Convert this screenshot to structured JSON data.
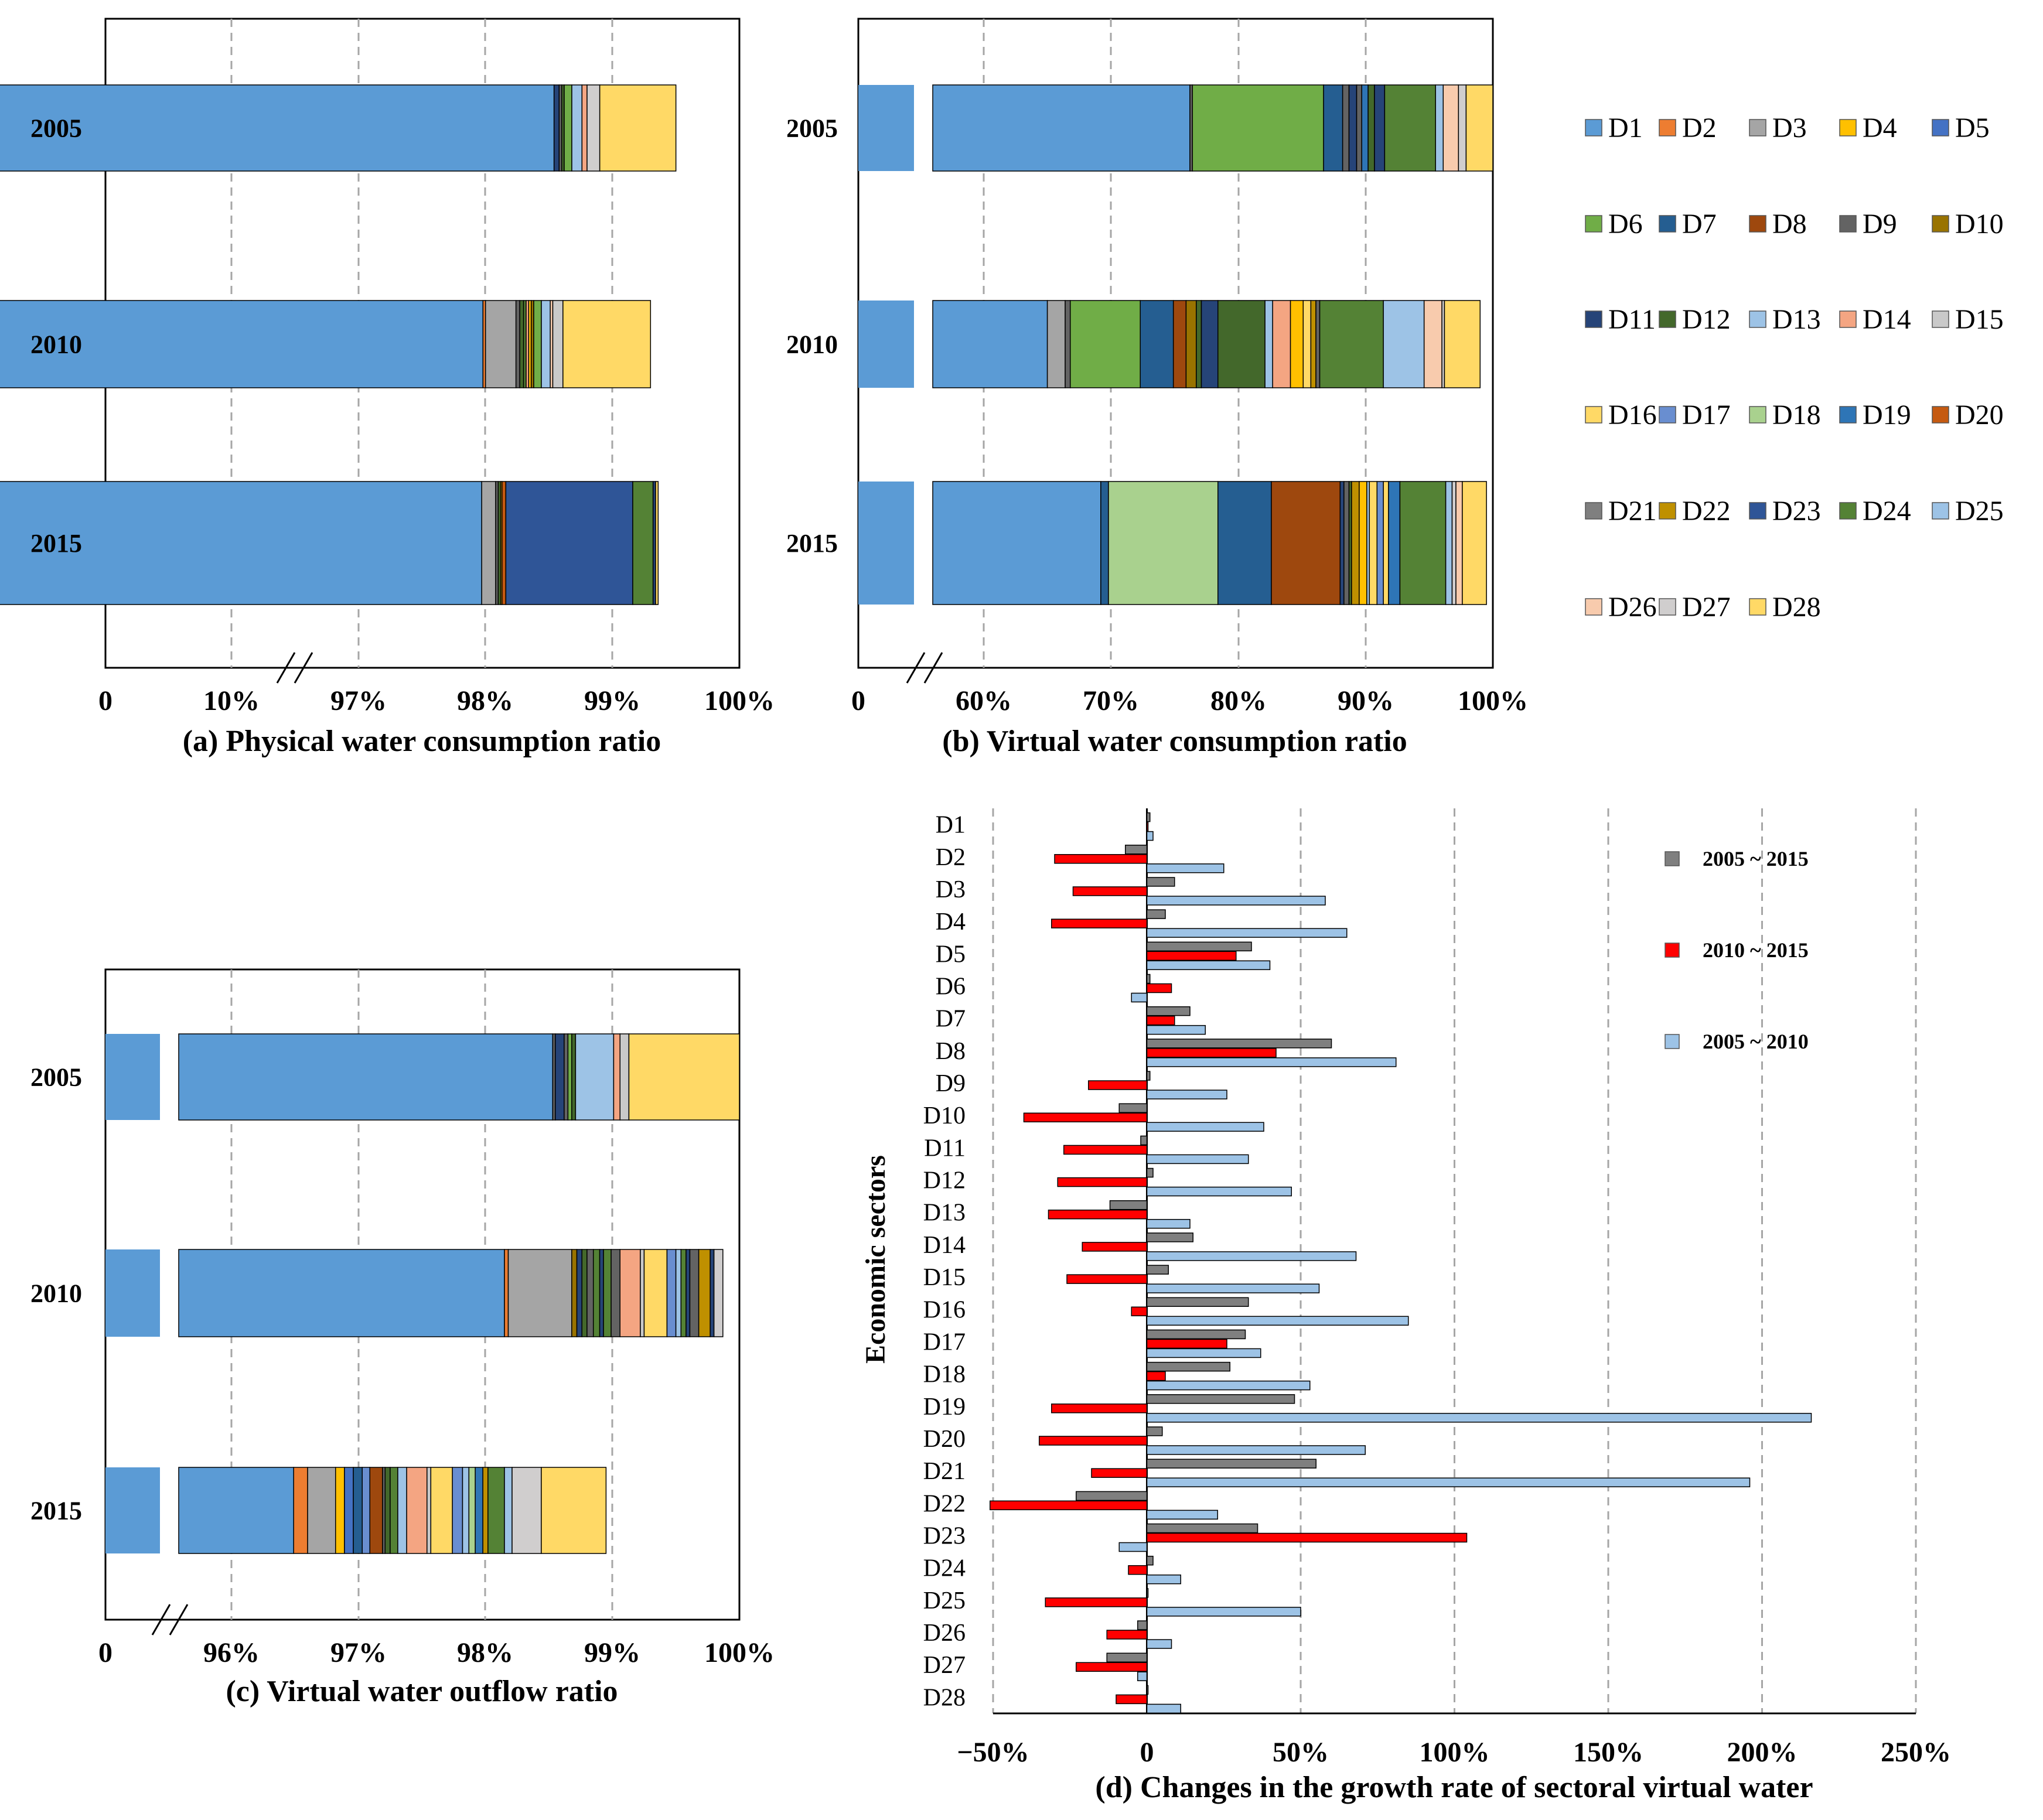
{
  "colors": {
    "D1": "#5B9BD5",
    "D2": "#ED7D31",
    "D3": "#A5A5A5",
    "D4": "#FFC000",
    "D5": "#4472C4",
    "D6": "#70AD47",
    "D7": "#255E91",
    "D8": "#9E480E",
    "D9": "#636363",
    "D10": "#997300",
    "D11": "#264478",
    "D12": "#43682B",
    "D13": "#9DC3E6",
    "D14": "#F4A582",
    "D15": "#C9C9C9",
    "D16": "#FFD966",
    "D17": "#698ED0",
    "D18": "#A9D18E",
    "D19": "#2E75B6",
    "D20": "#C55A11",
    "D21": "#7F7F7F",
    "D22": "#BF9000",
    "D23": "#2F5597",
    "D24": "#548235",
    "D25": "#9DC3E6",
    "D26": "#F8CBAD",
    "D27": "#D0CECE",
    "D28": "#FFD966",
    "black": "#000000",
    "gray": "#7f7f7f",
    "red": "#FF0000",
    "lightblue": "#9DC3E6"
  },
  "legend": {
    "items": [
      "D1",
      "D2",
      "D3",
      "D4",
      "D5",
      "D6",
      "D7",
      "D8",
      "D9",
      "D10",
      "D11",
      "D12",
      "D13",
      "D14",
      "D15",
      "D16",
      "D17",
      "D18",
      "D19",
      "D20",
      "D21",
      "D22",
      "D23",
      "D24",
      "D25",
      "D26",
      "D27",
      "D28"
    ]
  },
  "chart_data": [
    {
      "type": "bar",
      "orientation": "horizontal-stacked",
      "title": "(a) Physical water consumption ratio",
      "categories": [
        "2005",
        "2010",
        "2015"
      ],
      "axis_break": "between 10% and 97%",
      "x_ticks": [
        "0",
        "10%",
        "97%",
        "98%",
        "99%",
        "100%"
      ],
      "xlim_after_break": [
        96.5,
        100
      ],
      "segments": [
        [
          [
            "D1",
            98.54
          ],
          [
            "D11",
            0.04
          ],
          [
            "D9",
            0.02
          ],
          [
            "D12",
            0.02
          ],
          [
            "D6",
            0.06
          ],
          [
            "D13",
            0.08
          ],
          [
            "D14",
            0.04
          ],
          [
            "D27",
            0.1
          ],
          [
            "D28",
            0.6
          ]
        ],
        [
          [
            "D1",
            97.98
          ],
          [
            "D2",
            0.02
          ],
          [
            "D3",
            0.24
          ],
          [
            "D9",
            0.03
          ],
          [
            "D12",
            0.03
          ],
          [
            "D24",
            0.02
          ],
          [
            "D14",
            0.02
          ],
          [
            "D4",
            0.02
          ],
          [
            "D10",
            0.02
          ],
          [
            "D6",
            0.06
          ],
          [
            "D13",
            0.07
          ],
          [
            "D26",
            0.02
          ],
          [
            "D15",
            0.08
          ],
          [
            "D28",
            0.69
          ]
        ],
        [
          [
            "D1",
            97.97
          ],
          [
            "D3",
            0.11
          ],
          [
            "D9",
            0.02
          ],
          [
            "D12",
            0.02
          ],
          [
            "D4",
            0.01
          ],
          [
            "D20",
            0.03
          ],
          [
            "D23",
            1.0
          ],
          [
            "D24",
            0.16
          ],
          [
            "D11",
            0.02
          ],
          [
            "D28",
            0.02
          ]
        ]
      ]
    },
    {
      "type": "bar",
      "orientation": "horizontal-stacked",
      "title": "(b) Virtual water consumption ratio",
      "categories": [
        "2005",
        "2010",
        "2015"
      ],
      "axis_break": "between 0 and 60%",
      "x_ticks": [
        "0",
        "60%",
        "70%",
        "80%",
        "90%",
        "100%"
      ],
      "xlim_after_break": [
        54,
        100
      ],
      "segments": [
        [
          [
            "D1",
            76.2
          ],
          [
            "D9",
            0.2
          ],
          [
            "D6",
            10.3
          ],
          [
            "D7",
            1.5
          ],
          [
            "D9",
            0.5
          ],
          [
            "D11",
            0.6
          ],
          [
            "D9",
            0.4
          ],
          [
            "D19",
            0.5
          ],
          [
            "D12",
            0.5
          ],
          [
            "D11",
            0.8
          ],
          [
            "D24",
            4.0
          ],
          [
            "D13",
            0.6
          ],
          [
            "D26",
            1.2
          ],
          [
            "D27",
            0.6
          ],
          [
            "D28",
            2.1
          ]
        ],
        [
          [
            "D1",
            65.0
          ],
          [
            "D3",
            1.4
          ],
          [
            "D9",
            0.4
          ],
          [
            "D6",
            5.5
          ],
          [
            "D7",
            2.6
          ],
          [
            "D8",
            1.0
          ],
          [
            "D10",
            0.8
          ],
          [
            "D12",
            0.4
          ],
          [
            "D11",
            1.3
          ],
          [
            "D12",
            3.7
          ],
          [
            "D13",
            0.6
          ],
          [
            "D14",
            1.4
          ],
          [
            "D4",
            1.0
          ],
          [
            "D16",
            0.6
          ],
          [
            "D22",
            0.4
          ],
          [
            "D9",
            0.3
          ],
          [
            "D24",
            5.0
          ],
          [
            "D13",
            3.2
          ],
          [
            "D26",
            1.4
          ],
          [
            "D27",
            0.2
          ],
          [
            "D28",
            2.8
          ]
        ],
        [
          [
            "D1",
            69.2
          ],
          [
            "D7",
            0.6
          ],
          [
            "D18",
            8.6
          ],
          [
            "D7",
            4.2
          ],
          [
            "D8",
            5.4
          ],
          [
            "D11",
            0.3
          ],
          [
            "D9",
            0.4
          ],
          [
            "D12",
            0.2
          ],
          [
            "D22",
            0.6
          ],
          [
            "D4",
            0.6
          ],
          [
            "D13",
            0.2
          ],
          [
            "D28",
            0.6
          ],
          [
            "D17",
            0.5
          ],
          [
            "D16",
            0.4
          ],
          [
            "D19",
            0.9
          ],
          [
            "D24",
            3.6
          ],
          [
            "D13",
            0.5
          ],
          [
            "D27",
            0.3
          ],
          [
            "D26",
            0.5
          ],
          [
            "D28",
            1.9
          ]
        ]
      ]
    },
    {
      "type": "bar",
      "orientation": "horizontal-stacked",
      "title": "(c) Virtual water outflow ratio",
      "categories": [
        "2005",
        "2010",
        "2015"
      ],
      "axis_break": "between 0 and 96%",
      "x_ticks": [
        "0",
        "96%",
        "97%",
        "98%",
        "99%",
        "100%"
      ],
      "xlim_after_break": [
        95.6,
        100
      ],
      "segments": [
        [
          [
            "D1",
            98.53
          ],
          [
            "D9",
            0.02
          ],
          [
            "D11",
            0.07
          ],
          [
            "D9",
            0.03
          ],
          [
            "D6",
            0.03
          ],
          [
            "D12",
            0.03
          ],
          [
            "D13",
            0.3
          ],
          [
            "D14",
            0.05
          ],
          [
            "D15",
            0.07
          ],
          [
            "D28",
            0.87
          ]
        ],
        [
          [
            "D1",
            98.15
          ],
          [
            "D2",
            0.03
          ],
          [
            "D3",
            0.5
          ],
          [
            "D10",
            0.04
          ],
          [
            "D11",
            0.04
          ],
          [
            "D12",
            0.04
          ],
          [
            "D9",
            0.05
          ],
          [
            "D24",
            0.05
          ],
          [
            "D11",
            0.03
          ],
          [
            "D24",
            0.06
          ],
          [
            "D9",
            0.07
          ],
          [
            "D14",
            0.16
          ],
          [
            "D15",
            0.03
          ],
          [
            "D16",
            0.18
          ],
          [
            "D17",
            0.07
          ],
          [
            "D13",
            0.04
          ],
          [
            "D24",
            0.04
          ],
          [
            "D11",
            0.03
          ],
          [
            "D9",
            0.07
          ],
          [
            "D22",
            0.09
          ],
          [
            "D11",
            0.03
          ],
          [
            "D27",
            0.07
          ]
        ],
        [
          [
            "D1",
            96.49
          ],
          [
            "D2",
            0.11
          ],
          [
            "D3",
            0.22
          ],
          [
            "D4",
            0.07
          ],
          [
            "D5",
            0.07
          ],
          [
            "D7",
            0.07
          ],
          [
            "D17",
            0.06
          ],
          [
            "D8",
            0.1
          ],
          [
            "D9",
            0.02
          ],
          [
            "D12",
            0.04
          ],
          [
            "D24",
            0.06
          ],
          [
            "D13",
            0.07
          ],
          [
            "D14",
            0.16
          ],
          [
            "D15",
            0.03
          ],
          [
            "D16",
            0.17
          ],
          [
            "D17",
            0.08
          ],
          [
            "D13",
            0.05
          ],
          [
            "D18",
            0.05
          ],
          [
            "D19",
            0.06
          ],
          [
            "D22",
            0.04
          ],
          [
            "D24",
            0.13
          ],
          [
            "D13",
            0.06
          ],
          [
            "D27",
            0.23
          ],
          [
            "D28",
            0.51
          ]
        ]
      ]
    },
    {
      "type": "bar",
      "orientation": "horizontal-grouped",
      "title": "(d) Changes in the growth rate of sectoral virtual water",
      "ylabel": "Economic sectors",
      "xlim": [
        -50,
        250
      ],
      "x_ticks": [
        "−50%",
        "0",
        "50%",
        "100%",
        "150%",
        "200%",
        "250%"
      ],
      "x_tick_values": [
        -50,
        0,
        50,
        100,
        150,
        200,
        250
      ],
      "categories": [
        "D1",
        "D2",
        "D3",
        "D4",
        "D5",
        "D6",
        "D7",
        "D8",
        "D9",
        "D10",
        "D11",
        "D12",
        "D13",
        "D14",
        "D15",
        "D16",
        "D17",
        "D18",
        "D19",
        "D20",
        "D21",
        "D22",
        "D23",
        "D24",
        "D25",
        "D26",
        "D27",
        "D28"
      ],
      "series": [
        {
          "name": "2005 ~ 2015",
          "color": "#7f7f7f",
          "values": [
            1,
            -7,
            9,
            6,
            34,
            1,
            14,
            60,
            1,
            -9,
            -2,
            2,
            -12,
            15,
            7,
            33,
            32,
            27,
            48,
            5,
            55,
            -23,
            36,
            2,
            0,
            -3,
            -13,
            0
          ]
        },
        {
          "name": "2010 ~ 2015",
          "color": "#FF0000",
          "values": [
            0,
            -30,
            -24,
            -31,
            29,
            8,
            9,
            42,
            -19,
            -40,
            -27,
            -29,
            -32,
            -21,
            -26,
            -5,
            26,
            6,
            -31,
            -35,
            -18,
            -51,
            104,
            -6,
            -33,
            -13,
            -23,
            -10
          ]
        },
        {
          "name": "2005 ~ 2010",
          "color": "#9DC3E6",
          "values": [
            2,
            25,
            58,
            65,
            40,
            -5,
            19,
            81,
            26,
            38,
            33,
            47,
            14,
            68,
            56,
            85,
            37,
            53,
            216,
            71,
            196,
            23,
            -9,
            11,
            50,
            8,
            -3,
            11
          ]
        }
      ]
    }
  ]
}
